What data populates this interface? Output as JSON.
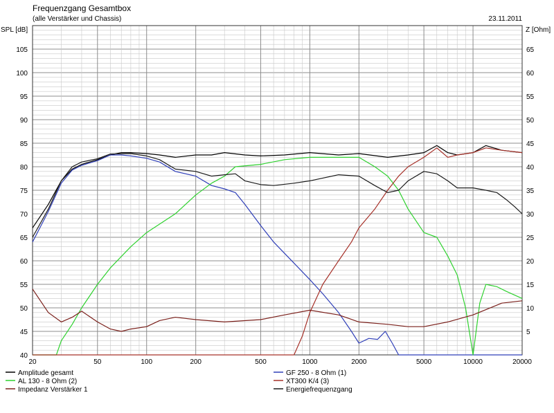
{
  "chart_data": {
    "type": "line",
    "title": "Frequenzgang Gesamtbox",
    "subtitle": "(alle Verstärker und Chassis)",
    "date": "23.11.2011",
    "x_scale": "log",
    "grid": true,
    "ylabel_left": "SPL [dB]",
    "ylabel_right": "Z [Ohm]",
    "xlim": [
      20,
      20000
    ],
    "ylim": [
      40,
      110
    ],
    "ylim_right": [
      0,
      70
    ],
    "x_ticks": [
      "20",
      "50",
      "100",
      "200",
      "500",
      "1000",
      "2000",
      "5000",
      "10000",
      "20000"
    ],
    "y_ticks": [
      "40",
      "45",
      "50",
      "55",
      "60",
      "65",
      "70",
      "75",
      "80",
      "85",
      "90",
      "95",
      "100",
      "105"
    ],
    "y_ticks_right": [
      "5",
      "10",
      "15",
      "20",
      "25",
      "30",
      "35",
      "40",
      "45",
      "50",
      "55",
      "60",
      "65"
    ],
    "legend_position": "bottom",
    "series": [
      {
        "name": "Amplitude gesamt",
        "color": "#000000",
        "axis": "left",
        "points": [
          [
            20,
            67
          ],
          [
            25,
            72
          ],
          [
            30,
            77
          ],
          [
            35,
            79.5
          ],
          [
            40,
            80.5
          ],
          [
            50,
            81.5
          ],
          [
            60,
            82.5
          ],
          [
            70,
            83
          ],
          [
            80,
            83
          ],
          [
            100,
            82.8
          ],
          [
            120,
            82.5
          ],
          [
            150,
            82
          ],
          [
            200,
            82.5
          ],
          [
            250,
            82.5
          ],
          [
            300,
            83
          ],
          [
            400,
            82.5
          ],
          [
            500,
            82.3
          ],
          [
            700,
            82.5
          ],
          [
            1000,
            83
          ],
          [
            1500,
            82.5
          ],
          [
            2000,
            82.8
          ],
          [
            3000,
            82
          ],
          [
            4000,
            82.5
          ],
          [
            5000,
            83
          ],
          [
            6000,
            84.5
          ],
          [
            7000,
            83
          ],
          [
            8000,
            82.5
          ],
          [
            10000,
            83
          ],
          [
            12000,
            84.5
          ],
          [
            15000,
            83.5
          ],
          [
            20000,
            83
          ]
        ]
      },
      {
        "name": "GF 250 - 8 Ohm (1)",
        "color": "#2f3fb8",
        "axis": "left",
        "points": [
          [
            20,
            64
          ],
          [
            25,
            70.5
          ],
          [
            30,
            76.5
          ],
          [
            35,
            79.3
          ],
          [
            40,
            80.3
          ],
          [
            50,
            81.3
          ],
          [
            60,
            82.5
          ],
          [
            70,
            82.5
          ],
          [
            80,
            82.3
          ],
          [
            100,
            81.8
          ],
          [
            120,
            81
          ],
          [
            150,
            79
          ],
          [
            200,
            78
          ],
          [
            250,
            76
          ],
          [
            300,
            75.3
          ],
          [
            350,
            74.5
          ],
          [
            400,
            72
          ],
          [
            500,
            67.5
          ],
          [
            600,
            64
          ],
          [
            800,
            59.5
          ],
          [
            1000,
            56
          ],
          [
            1200,
            53
          ],
          [
            1500,
            49
          ],
          [
            1800,
            45
          ],
          [
            2000,
            42.5
          ],
          [
            2300,
            43.5
          ],
          [
            2600,
            43.3
          ],
          [
            2900,
            45
          ],
          [
            3200,
            42.5
          ],
          [
            3500,
            40
          ],
          [
            20000,
            40
          ]
        ]
      },
      {
        "name": "AL 130 - 8 Ohm (2)",
        "color": "#2ed12e",
        "axis": "left",
        "points": [
          [
            20,
            40
          ],
          [
            28,
            40
          ],
          [
            30,
            43
          ],
          [
            35,
            46.5
          ],
          [
            40,
            50
          ],
          [
            50,
            55
          ],
          [
            60,
            58.5
          ],
          [
            80,
            63
          ],
          [
            100,
            66
          ],
          [
            150,
            70
          ],
          [
            200,
            74
          ],
          [
            250,
            76.5
          ],
          [
            300,
            78
          ],
          [
            350,
            80
          ],
          [
            500,
            80.5
          ],
          [
            700,
            81.5
          ],
          [
            1000,
            82
          ],
          [
            1500,
            82
          ],
          [
            2000,
            82
          ],
          [
            2500,
            80
          ],
          [
            3000,
            78
          ],
          [
            3500,
            75
          ],
          [
            4000,
            71
          ],
          [
            5000,
            66
          ],
          [
            6000,
            65
          ],
          [
            7000,
            61
          ],
          [
            8000,
            57
          ],
          [
            9000,
            50
          ],
          [
            10000,
            40
          ],
          [
            11000,
            51
          ],
          [
            12000,
            55
          ],
          [
            14000,
            54.5
          ],
          [
            16000,
            53.5
          ],
          [
            20000,
            52
          ]
        ]
      },
      {
        "name": "XT300 K/4 (3)",
        "color": "#a63028",
        "axis": "left",
        "points": [
          [
            20,
            40
          ],
          [
            800,
            40
          ],
          [
            900,
            44
          ],
          [
            1000,
            49
          ],
          [
            1200,
            55
          ],
          [
            1500,
            60
          ],
          [
            1800,
            64
          ],
          [
            2000,
            67
          ],
          [
            2500,
            71
          ],
          [
            3000,
            75
          ],
          [
            3500,
            78
          ],
          [
            4000,
            80
          ],
          [
            5000,
            82
          ],
          [
            6000,
            84
          ],
          [
            7000,
            82
          ],
          [
            8000,
            82.5
          ],
          [
            10000,
            83
          ],
          [
            12000,
            84
          ],
          [
            15000,
            83.5
          ],
          [
            20000,
            83
          ]
        ]
      },
      {
        "name": "Impedanz Verstärker 1",
        "color": "#7a1f1a",
        "axis": "right",
        "points": [
          [
            20,
            14
          ],
          [
            25,
            9
          ],
          [
            30,
            7
          ],
          [
            35,
            8
          ],
          [
            40,
            9.3
          ],
          [
            50,
            7
          ],
          [
            60,
            5.5
          ],
          [
            70,
            5
          ],
          [
            80,
            5.5
          ],
          [
            100,
            6
          ],
          [
            120,
            7.3
          ],
          [
            150,
            8
          ],
          [
            200,
            7.5
          ],
          [
            300,
            7
          ],
          [
            500,
            7.5
          ],
          [
            700,
            8.5
          ],
          [
            1000,
            9.5
          ],
          [
            1500,
            8.5
          ],
          [
            2000,
            7
          ],
          [
            3000,
            6.5
          ],
          [
            4000,
            6
          ],
          [
            5000,
            6
          ],
          [
            7000,
            7
          ],
          [
            10000,
            8.5
          ],
          [
            15000,
            11
          ],
          [
            20000,
            11.5
          ]
        ]
      },
      {
        "name": "Energiefrequenzgang",
        "color": "#1a1a1a",
        "axis": "left",
        "points": [
          [
            20,
            65
          ],
          [
            25,
            71
          ],
          [
            30,
            77
          ],
          [
            35,
            80
          ],
          [
            40,
            81
          ],
          [
            50,
            81.7
          ],
          [
            60,
            82.7
          ],
          [
            80,
            82.8
          ],
          [
            100,
            82.3
          ],
          [
            120,
            81.5
          ],
          [
            150,
            79.5
          ],
          [
            200,
            79
          ],
          [
            250,
            78
          ],
          [
            300,
            78.3
          ],
          [
            350,
            78.5
          ],
          [
            400,
            77
          ],
          [
            500,
            76.2
          ],
          [
            600,
            76
          ],
          [
            800,
            76.5
          ],
          [
            1000,
            77
          ],
          [
            1500,
            78.3
          ],
          [
            2000,
            78
          ],
          [
            2500,
            76
          ],
          [
            3000,
            74.5
          ],
          [
            3500,
            75
          ],
          [
            4000,
            77
          ],
          [
            5000,
            79
          ],
          [
            6000,
            78.5
          ],
          [
            7000,
            77
          ],
          [
            8000,
            75.5
          ],
          [
            10000,
            75.5
          ],
          [
            12000,
            75
          ],
          [
            14000,
            74.5
          ],
          [
            16000,
            73
          ],
          [
            18000,
            71.5
          ],
          [
            20000,
            70
          ]
        ]
      }
    ]
  }
}
